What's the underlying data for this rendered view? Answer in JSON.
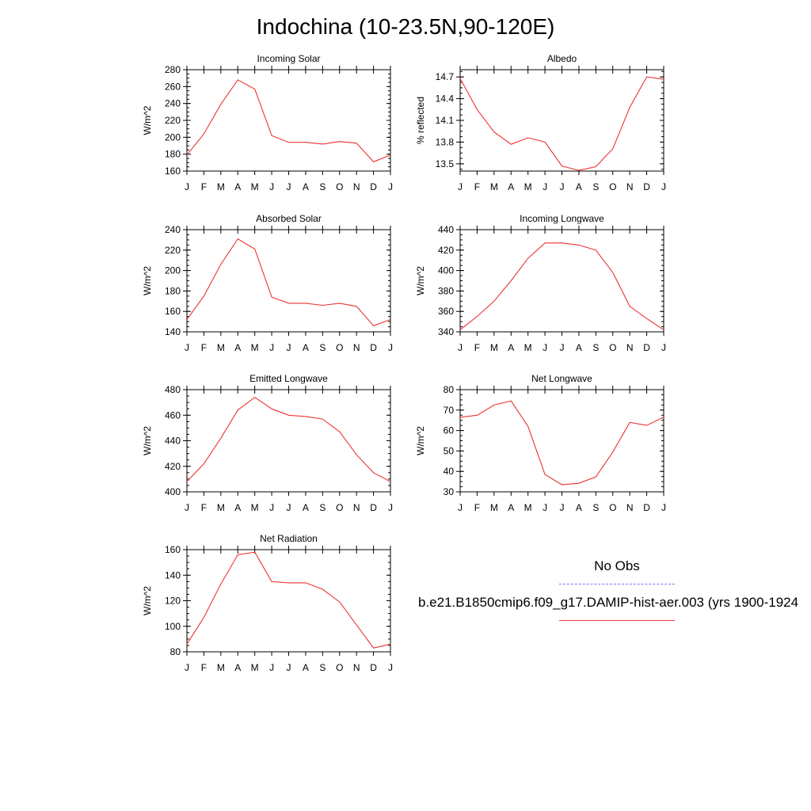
{
  "page_title": "Indochina (10-23.5N,90-120E)",
  "legend": {
    "obs_label": "No Obs",
    "obs_color": "#7777ee",
    "case_label": "b.e21.B1850cmip6.f09_g17.DAMIP-hist-aer.003 (yrs 1900-1924",
    "case_color": "#ee3333"
  },
  "chart_data": [
    {
      "type": "line",
      "title": "Incoming Solar",
      "ylabel": "W/m^2",
      "categories": [
        "J",
        "F",
        "M",
        "A",
        "M",
        "J",
        "J",
        "A",
        "S",
        "O",
        "N",
        "D",
        "J"
      ],
      "ylim": [
        160,
        280
      ],
      "yticks": [
        160,
        180,
        200,
        220,
        240,
        260,
        280
      ],
      "ytick_labels": [
        "160",
        "180",
        "200",
        "220",
        "240",
        "260",
        "280"
      ],
      "series": [
        {
          "values": [
            179,
            204,
            239,
            268,
            257,
            202,
            194,
            194,
            192,
            195,
            193,
            171,
            179
          ]
        }
      ]
    },
    {
      "type": "line",
      "title": "Albedo",
      "ylabel": "% reflected",
      "categories": [
        "J",
        "F",
        "M",
        "A",
        "M",
        "J",
        "J",
        "A",
        "S",
        "O",
        "N",
        "D",
        "J"
      ],
      "ylim": [
        13.4,
        14.8
      ],
      "yticks": [
        13.5,
        13.8,
        14.1,
        14.4,
        14.7
      ],
      "ytick_labels": [
        "13.5",
        "13.8",
        "14.1",
        "14.4",
        "14.7"
      ],
      "series": [
        {
          "values": [
            14.68,
            14.25,
            13.94,
            13.77,
            13.86,
            13.8,
            13.47,
            13.41,
            13.46,
            13.71,
            14.28,
            14.7,
            14.67
          ]
        }
      ]
    },
    {
      "type": "line",
      "title": "Absorbed Solar",
      "ylabel": "W/m^2",
      "categories": [
        "J",
        "F",
        "M",
        "A",
        "M",
        "J",
        "J",
        "A",
        "S",
        "O",
        "N",
        "D",
        "J"
      ],
      "ylim": [
        140,
        240
      ],
      "yticks": [
        140,
        160,
        180,
        200,
        220,
        240
      ],
      "ytick_labels": [
        "140",
        "160",
        "180",
        "200",
        "220",
        "240"
      ],
      "series": [
        {
          "values": [
            152,
            175,
            206,
            231,
            221,
            174,
            168,
            168,
            166,
            168,
            165,
            146,
            152
          ]
        }
      ]
    },
    {
      "type": "line",
      "title": "Incoming Longwave",
      "ylabel": "W/m^2",
      "categories": [
        "J",
        "F",
        "M",
        "A",
        "M",
        "J",
        "J",
        "A",
        "S",
        "O",
        "N",
        "D",
        "J"
      ],
      "ylim": [
        340,
        440
      ],
      "yticks": [
        340,
        360,
        380,
        400,
        420,
        440
      ],
      "ytick_labels": [
        "340",
        "360",
        "380",
        "400",
        "420",
        "440"
      ],
      "series": [
        {
          "values": [
            342,
            355,
            370,
            390,
            412,
            427,
            427,
            425,
            420,
            398,
            365,
            353,
            342
          ]
        }
      ]
    },
    {
      "type": "line",
      "title": "Emitted Longwave",
      "ylabel": "W/m^2",
      "categories": [
        "J",
        "F",
        "M",
        "A",
        "M",
        "J",
        "J",
        "A",
        "S",
        "O",
        "N",
        "D",
        "J"
      ],
      "ylim": [
        400,
        480
      ],
      "yticks": [
        400,
        420,
        440,
        460,
        480
      ],
      "ytick_labels": [
        "400",
        "420",
        "440",
        "460",
        "480"
      ],
      "series": [
        {
          "values": [
            408,
            422,
            442,
            464,
            474,
            465,
            460,
            459,
            457,
            447,
            429,
            415,
            408
          ]
        }
      ]
    },
    {
      "type": "line",
      "title": "Net Longwave",
      "ylabel": "W/m^2",
      "categories": [
        "J",
        "F",
        "M",
        "A",
        "M",
        "J",
        "J",
        "A",
        "S",
        "O",
        "N",
        "D",
        "J"
      ],
      "ylim": [
        30,
        80
      ],
      "yticks": [
        30,
        40,
        50,
        60,
        70,
        80
      ],
      "ytick_labels": [
        "30",
        "40",
        "50",
        "60",
        "70",
        "80"
      ],
      "series": [
        {
          "values": [
            66.5,
            67.5,
            72.5,
            74.5,
            62,
            38.5,
            33.5,
            34.2,
            37.3,
            49.5,
            64,
            62.5,
            66.5
          ]
        }
      ]
    },
    {
      "type": "line",
      "title": "Net Radiation",
      "ylabel": "W/m^2",
      "categories": [
        "J",
        "F",
        "M",
        "A",
        "M",
        "J",
        "J",
        "A",
        "S",
        "O",
        "N",
        "D",
        "J"
      ],
      "ylim": [
        80,
        160
      ],
      "yticks": [
        80,
        100,
        120,
        140,
        160
      ],
      "ytick_labels": [
        "80",
        "100",
        "120",
        "140",
        "160"
      ],
      "series": [
        {
          "values": [
            86,
            107,
            133,
            156,
            158,
            135,
            134,
            134,
            129,
            119,
            101,
            83,
            86
          ]
        }
      ]
    }
  ]
}
